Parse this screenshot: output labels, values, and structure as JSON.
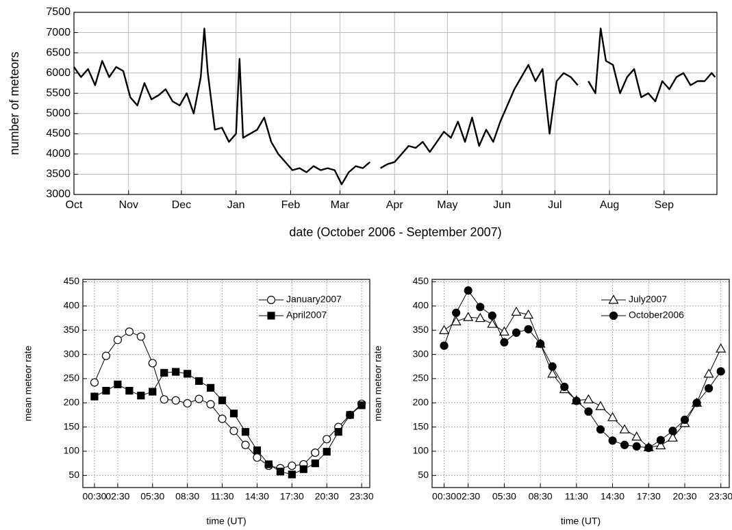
{
  "chart_data": [
    {
      "type": "line",
      "xlabel": "date (October 2006 - September 2007)",
      "ylabel": "number of meteors",
      "x": [
        0,
        4,
        8,
        12,
        16,
        20,
        24,
        28,
        32,
        36,
        40,
        44,
        48,
        52,
        56,
        60,
        64,
        68,
        72,
        74,
        76,
        80,
        84,
        88,
        92,
        94,
        96,
        100,
        104,
        108,
        112,
        116,
        120,
        124,
        128,
        132,
        136,
        140,
        144,
        148,
        152,
        156,
        160,
        164,
        168,
        172,
        174,
        178,
        182,
        186,
        190,
        194,
        198,
        202,
        206,
        210,
        214,
        218,
        222,
        226,
        230,
        234,
        238,
        242,
        246,
        250,
        254,
        258,
        262,
        266,
        270,
        274,
        278,
        282,
        286,
        290,
        292,
        296,
        299,
        302,
        306,
        310,
        314,
        318,
        322,
        326,
        330,
        334,
        338,
        342,
        346,
        350,
        354,
        358,
        362,
        364
      ],
      "series": [
        {
          "color": "#000000",
          "values": [
            6150,
            5900,
            6100,
            5700,
            6300,
            5900,
            6150,
            6050,
            5400,
            5200,
            5750,
            5350,
            5450,
            5600,
            5300,
            5200,
            5500,
            5000,
            5900,
            7100,
            6000,
            4600,
            4650,
            4300,
            4500,
            6350,
            4400,
            4500,
            4600,
            4900,
            4300,
            4000,
            3800,
            3600,
            3650,
            3550,
            3700,
            3600,
            3650,
            3600,
            3250,
            3550,
            3700,
            3650,
            3800,
            null,
            3650,
            3750,
            3800,
            4000,
            4200,
            4150,
            4300,
            4050,
            4300,
            4550,
            4400,
            4800,
            4300,
            4900,
            4200,
            4600,
            4300,
            4800,
            5200,
            5600,
            5900,
            6200,
            5800,
            6100,
            4500,
            5800,
            6000,
            5900,
            5700,
            null,
            5800,
            5500,
            7100,
            6300,
            6200,
            5500,
            5900,
            6100,
            5400,
            5500,
            5300,
            5800,
            5600,
            5900,
            6000,
            5700,
            5800,
            5800,
            6000,
            5900
          ]
        }
      ],
      "xlim": [
        0,
        365
      ],
      "xticks": [
        {
          "value": 0,
          "label": "Oct"
        },
        {
          "value": 31,
          "label": "Nov"
        },
        {
          "value": 61,
          "label": "Dec"
        },
        {
          "value": 92,
          "label": "Jan"
        },
        {
          "value": 123,
          "label": "Feb"
        },
        {
          "value": 151,
          "label": "Mar"
        },
        {
          "value": 182,
          "label": "Apr"
        },
        {
          "value": 212,
          "label": "May"
        },
        {
          "value": 243,
          "label": "Jun"
        },
        {
          "value": 273,
          "label": "Jul"
        },
        {
          "value": 304,
          "label": "Aug"
        },
        {
          "value": 335,
          "label": "Sep"
        }
      ],
      "ylim": [
        3000,
        7500
      ],
      "yticks": [
        3000,
        3500,
        4000,
        4500,
        5000,
        5500,
        6000,
        6500,
        7000,
        7500
      ],
      "grid": true
    },
    {
      "type": "line",
      "xlabel": "time (UT)",
      "ylabel": "mean meteor rate",
      "x": [
        0.5,
        1.5,
        2.5,
        3.5,
        4.5,
        5.5,
        6.5,
        7.5,
        8.5,
        9.5,
        10.5,
        11.5,
        12.5,
        13.5,
        14.5,
        15.5,
        16.5,
        17.5,
        18.5,
        19.5,
        20.5,
        21.5,
        22.5,
        23.5
      ],
      "series": [
        {
          "name": "January2007",
          "color": "#000000",
          "marker": "circle-open",
          "values": [
            242,
            297,
            330,
            347,
            337,
            282,
            207,
            205,
            199,
            208,
            197,
            167,
            142,
            113,
            87,
            70,
            65,
            70,
            73,
            97,
            125,
            150,
            175,
            198
          ]
        },
        {
          "name": "April2007",
          "color": "#000000",
          "marker": "square-filled",
          "values": [
            213,
            225,
            238,
            225,
            215,
            223,
            262,
            264,
            260,
            245,
            231,
            205,
            178,
            140,
            102,
            73,
            58,
            52,
            63,
            75,
            99,
            140,
            175,
            195
          ]
        }
      ],
      "xlim": [
        -0.5,
        24.2
      ],
      "xticks": [
        {
          "value": 0.5,
          "label": "00:30"
        },
        {
          "value": 2.5,
          "label": "02:30"
        },
        {
          "value": 5.5,
          "label": "05:30"
        },
        {
          "value": 8.5,
          "label": "08:30"
        },
        {
          "value": 11.5,
          "label": "11:30"
        },
        {
          "value": 14.5,
          "label": "14:30"
        },
        {
          "value": 17.5,
          "label": "17:30"
        },
        {
          "value": 20.5,
          "label": "20:30"
        },
        {
          "value": 23.5,
          "label": "23:30"
        }
      ],
      "ylim": [
        25,
        455
      ],
      "yticks": [
        50,
        100,
        150,
        200,
        250,
        300,
        350,
        400,
        450
      ],
      "grid": true
    },
    {
      "type": "line",
      "xlabel": "time (UT)",
      "ylabel": "mean meteor rate",
      "x": [
        0.5,
        1.5,
        2.5,
        3.5,
        4.5,
        5.5,
        6.5,
        7.5,
        8.5,
        9.5,
        10.5,
        11.5,
        12.5,
        13.5,
        14.5,
        15.5,
        16.5,
        17.5,
        18.5,
        19.5,
        20.5,
        21.5,
        22.5,
        23.5
      ],
      "series": [
        {
          "name": "July2007",
          "color": "#000000",
          "marker": "triangle-open",
          "values": [
            350,
            368,
            377,
            375,
            363,
            347,
            388,
            382,
            322,
            260,
            228,
            205,
            207,
            193,
            170,
            145,
            130,
            108,
            112,
            128,
            158,
            200,
            260,
            312
          ]
        },
        {
          "name": "October2006",
          "color": "#000000",
          "marker": "circle-filled",
          "values": [
            318,
            386,
            432,
            398,
            380,
            325,
            345,
            352,
            322,
            275,
            233,
            204,
            182,
            145,
            122,
            113,
            110,
            107,
            123,
            142,
            165,
            200,
            230,
            265
          ]
        }
      ],
      "xlim": [
        -0.5,
        24.2
      ],
      "xticks": [
        {
          "value": 0.5,
          "label": "00:30"
        },
        {
          "value": 2.5,
          "label": "02:30"
        },
        {
          "value": 5.5,
          "label": "05:30"
        },
        {
          "value": 8.5,
          "label": "08:30"
        },
        {
          "value": 11.5,
          "label": "11:30"
        },
        {
          "value": 14.5,
          "label": "14:30"
        },
        {
          "value": 17.5,
          "label": "17:30"
        },
        {
          "value": 20.5,
          "label": "20:30"
        },
        {
          "value": 23.5,
          "label": "23:30"
        }
      ],
      "ylim": [
        25,
        455
      ],
      "yticks": [
        50,
        100,
        150,
        200,
        250,
        300,
        350,
        400,
        450
      ],
      "grid": true
    }
  ]
}
